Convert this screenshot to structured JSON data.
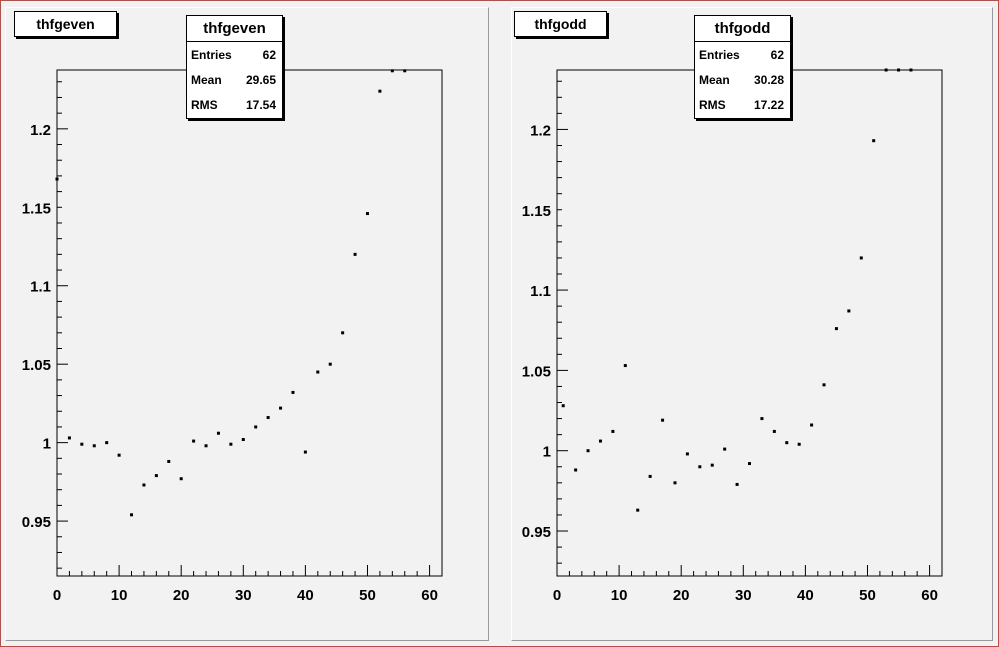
{
  "colors": {
    "canvas_border": "#e8392b",
    "pad_bg": "#f2f2f2",
    "marker": "#000000"
  },
  "panels": [
    {
      "title": "thfgeven",
      "stats": {
        "name": "thfgeven",
        "entries_label": "Entries",
        "entries": "62",
        "mean_label": "Mean",
        "mean": "29.65",
        "rms_label": "RMS",
        "rms": "17.54"
      }
    },
    {
      "title": "thfgodd",
      "stats": {
        "name": "thfgodd",
        "entries_label": "Entries",
        "entries": "62",
        "mean_label": "Mean",
        "mean": "30.28",
        "rms_label": "RMS",
        "rms": "17.22"
      }
    }
  ],
  "chart_data": [
    {
      "type": "scatter",
      "title": "thfgeven",
      "xlabel": "",
      "ylabel": "",
      "xlim": [
        0,
        62
      ],
      "ylim": [
        0.915,
        1.2375
      ],
      "xticks": [
        0,
        10,
        20,
        30,
        40,
        50,
        60
      ],
      "yticks": [
        0.95,
        1,
        1.05,
        1.1,
        1.15,
        1.2
      ],
      "ytick_labels": [
        "0.95",
        "1",
        "1.05",
        "1.1",
        "1.15",
        "1.2"
      ],
      "grid": false,
      "x": [
        0,
        2,
        4,
        6,
        8,
        10,
        12,
        14,
        16,
        18,
        20,
        22,
        24,
        26,
        28,
        30,
        32,
        34,
        36,
        38,
        40,
        42,
        44,
        46,
        48,
        50,
        52,
        54,
        56
      ],
      "y": [
        1.168,
        1.003,
        0.999,
        0.998,
        1.0,
        0.992,
        0.954,
        0.973,
        0.979,
        0.988,
        0.977,
        1.001,
        0.998,
        1.006,
        0.999,
        1.002,
        1.01,
        1.016,
        1.022,
        1.032,
        0.994,
        1.045,
        1.05,
        1.07,
        1.12,
        1.146,
        1.224,
        1.237,
        1.237
      ]
    },
    {
      "type": "scatter",
      "title": "thfgodd",
      "xlabel": "",
      "ylabel": "",
      "xlim": [
        0,
        62
      ],
      "ylim": [
        0.922,
        1.237
      ],
      "xticks": [
        0,
        10,
        20,
        30,
        40,
        50,
        60
      ],
      "yticks": [
        0.95,
        1,
        1.05,
        1.1,
        1.15,
        1.2
      ],
      "ytick_labels": [
        "0.95",
        "1",
        "1.05",
        "1.1",
        "1.15",
        "1.2"
      ],
      "grid": false,
      "x": [
        1,
        3,
        5,
        7,
        9,
        11,
        13,
        15,
        17,
        19,
        21,
        23,
        25,
        27,
        29,
        31,
        33,
        35,
        37,
        39,
        41,
        43,
        45,
        47,
        49,
        51,
        53,
        55,
        57
      ],
      "y": [
        1.028,
        0.988,
        1.0,
        1.006,
        1.012,
        1.053,
        0.963,
        0.984,
        1.019,
        0.98,
        0.998,
        0.99,
        0.991,
        1.001,
        0.979,
        0.992,
        1.02,
        1.012,
        1.005,
        1.004,
        1.016,
        1.041,
        1.076,
        1.087,
        1.12,
        1.193,
        1.237,
        1.237,
        1.237
      ]
    }
  ]
}
